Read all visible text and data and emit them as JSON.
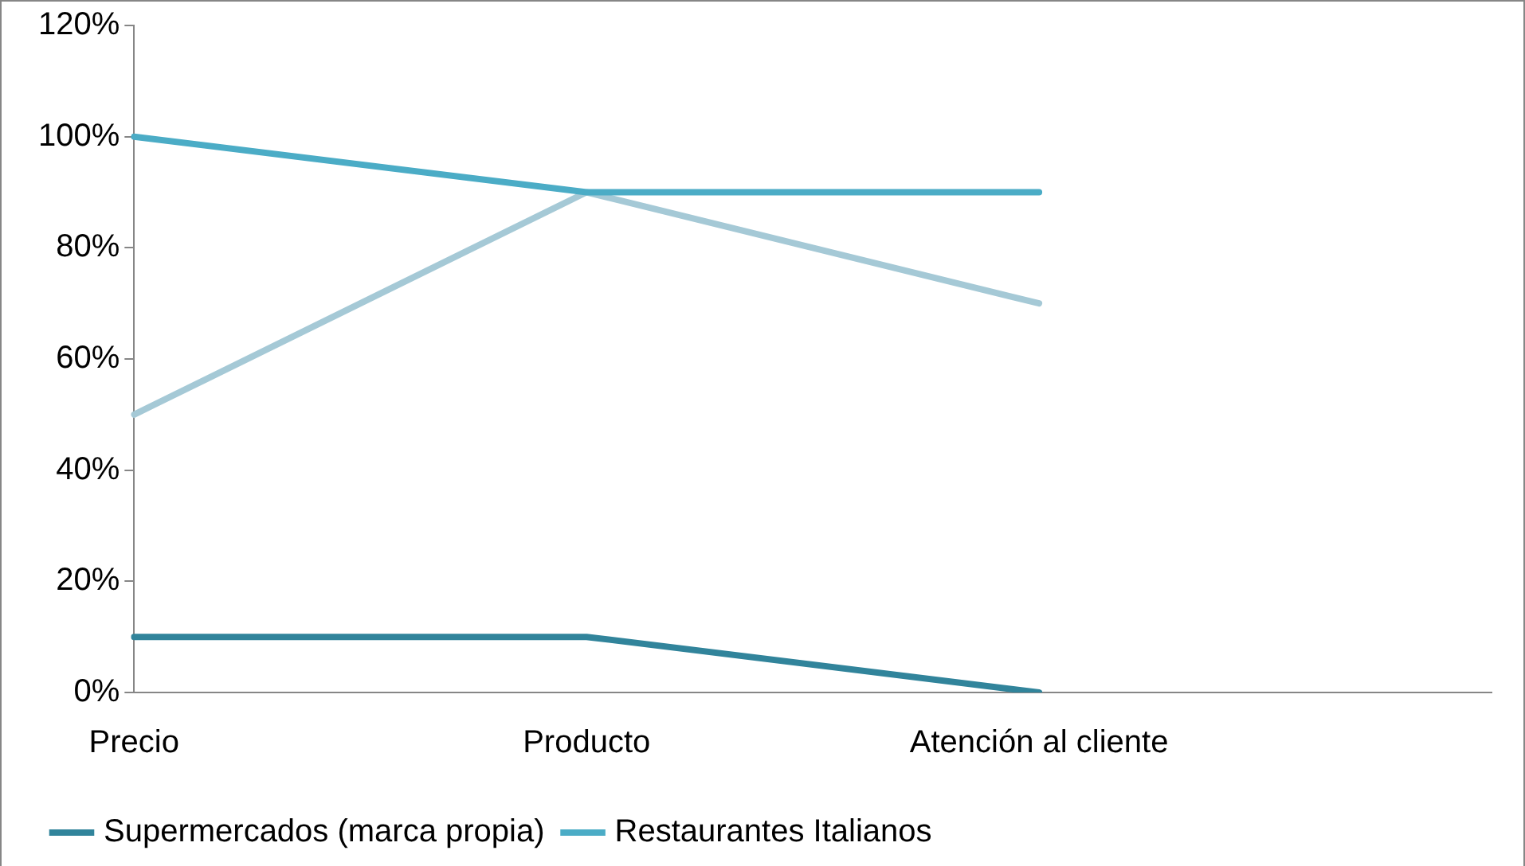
{
  "chart_data": {
    "type": "line",
    "categories": [
      "Precio",
      "Producto",
      "Atención al cliente",
      null
    ],
    "series": [
      {
        "name": "Supermercados (marca propia)",
        "color": "#31849b",
        "values": [
          10,
          10,
          0,
          null
        ]
      },
      {
        "name": "Restaurantes Italianos",
        "color": "#4bacc6",
        "values": [
          100,
          90,
          90,
          null
        ]
      },
      {
        "color": "#a5c9d6",
        "values": [
          50,
          90,
          70,
          null
        ]
      }
    ],
    "ylim": [
      0,
      120
    ],
    "yticks": [
      {
        "value": 0,
        "label": "0%"
      },
      {
        "value": 20,
        "label": "20%"
      },
      {
        "value": 40,
        "label": "40%"
      },
      {
        "value": 60,
        "label": "60%"
      },
      {
        "value": 80,
        "label": "80%"
      },
      {
        "value": 100,
        "label": "100%"
      },
      {
        "value": 120,
        "label": "120%"
      }
    ],
    "grid": false,
    "legend": "bottom",
    "marker": "none",
    "line_style": "solid"
  }
}
